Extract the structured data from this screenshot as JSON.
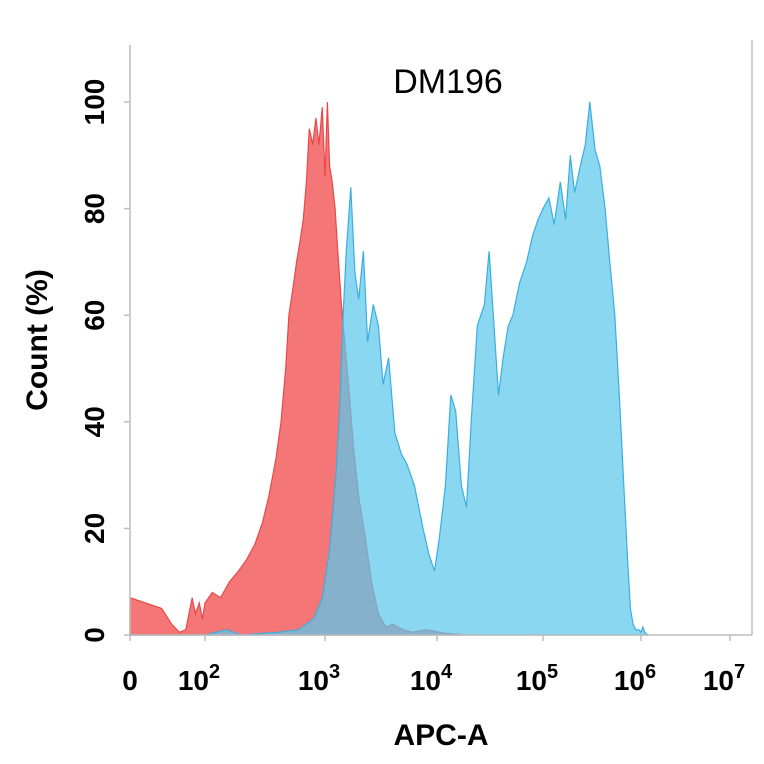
{
  "chart_data": {
    "type": "area",
    "title": "DM196",
    "xlabel": "APC-A",
    "ylabel": "Count  (%)",
    "x_scale": "biexponential",
    "xlim": [
      0,
      10000000
    ],
    "ylim": [
      0,
      100
    ],
    "x_ticks": [
      {
        "value": 0,
        "base": "0",
        "exp": ""
      },
      {
        "value": 100,
        "base": "10",
        "exp": "2"
      },
      {
        "value": 1000,
        "base": "10",
        "exp": "3"
      },
      {
        "value": 10000,
        "base": "10",
        "exp": "4"
      },
      {
        "value": 100000,
        "base": "10",
        "exp": "5"
      },
      {
        "value": 1000000,
        "base": "10",
        "exp": "6"
      },
      {
        "value": 10000000,
        "base": "10",
        "exp": "7"
      }
    ],
    "y_ticks": [
      0,
      20,
      40,
      60,
      80,
      100
    ],
    "grid": false,
    "series": [
      {
        "color": "#f36f6f",
        "line_color": "#e8484a",
        "points": [
          [
            0,
            7
          ],
          [
            6,
            5
          ],
          [
            12,
            2
          ],
          [
            20,
            0.5
          ],
          [
            30,
            1
          ],
          [
            45,
            7
          ],
          [
            55,
            4
          ],
          [
            70,
            6
          ],
          [
            85,
            3
          ],
          [
            100,
            6
          ],
          [
            115,
            8
          ],
          [
            135,
            7
          ],
          [
            160,
            10
          ],
          [
            190,
            12
          ],
          [
            220,
            14
          ],
          [
            260,
            17
          ],
          [
            300,
            21
          ],
          [
            340,
            26
          ],
          [
            390,
            33
          ],
          [
            430,
            40
          ],
          [
            470,
            50
          ],
          [
            500,
            60
          ],
          [
            540,
            65
          ],
          [
            580,
            70
          ],
          [
            620,
            74
          ],
          [
            660,
            78
          ],
          [
            700,
            85
          ],
          [
            740,
            95
          ],
          [
            790,
            92
          ],
          [
            840,
            97
          ],
          [
            890,
            92
          ],
          [
            950,
            99
          ],
          [
            1000,
            86
          ],
          [
            1050,
            100
          ],
          [
            1100,
            88
          ],
          [
            1160,
            85
          ],
          [
            1230,
            80
          ],
          [
            1300,
            72
          ],
          [
            1400,
            62
          ],
          [
            1500,
            55
          ],
          [
            1650,
            45
          ],
          [
            1800,
            35
          ],
          [
            2000,
            26
          ],
          [
            2300,
            18
          ],
          [
            2600,
            10
          ],
          [
            3000,
            4
          ],
          [
            3500,
            1.5
          ],
          [
            4000,
            2
          ],
          [
            5000,
            1
          ],
          [
            6000,
            0.5
          ],
          [
            8000,
            1
          ],
          [
            12000,
            0.3
          ],
          [
            20000,
            0
          ]
        ]
      },
      {
        "color": "#5cc8ec",
        "line_color": "#3aaee0",
        "points": [
          [
            0,
            0
          ],
          [
            100,
            0
          ],
          [
            150,
            1
          ],
          [
            200,
            0
          ],
          [
            400,
            0.5
          ],
          [
            600,
            1
          ],
          [
            800,
            3
          ],
          [
            950,
            7
          ],
          [
            1100,
            16
          ],
          [
            1250,
            30
          ],
          [
            1350,
            42
          ],
          [
            1450,
            60
          ],
          [
            1550,
            72
          ],
          [
            1700,
            84
          ],
          [
            1850,
            68
          ],
          [
            2000,
            63
          ],
          [
            2200,
            72
          ],
          [
            2400,
            55
          ],
          [
            2700,
            62
          ],
          [
            3000,
            58
          ],
          [
            3300,
            47
          ],
          [
            3700,
            52
          ],
          [
            4200,
            38
          ],
          [
            4800,
            34
          ],
          [
            5400,
            32
          ],
          [
            6300,
            28
          ],
          [
            7500,
            20
          ],
          [
            8500,
            15
          ],
          [
            9500,
            12
          ],
          [
            10500,
            18
          ],
          [
            12000,
            28
          ],
          [
            13500,
            45
          ],
          [
            15000,
            42
          ],
          [
            17000,
            28
          ],
          [
            19000,
            24
          ],
          [
            21000,
            40
          ],
          [
            24000,
            58
          ],
          [
            28000,
            62
          ],
          [
            31000,
            72
          ],
          [
            34000,
            60
          ],
          [
            38000,
            45
          ],
          [
            42000,
            52
          ],
          [
            47000,
            58
          ],
          [
            52000,
            60
          ],
          [
            60000,
            66
          ],
          [
            70000,
            70
          ],
          [
            80000,
            75
          ],
          [
            90000,
            78
          ],
          [
            100000,
            80
          ],
          [
            115000,
            82
          ],
          [
            130000,
            77
          ],
          [
            150000,
            85
          ],
          [
            170000,
            78
          ],
          [
            190000,
            90
          ],
          [
            210000,
            83
          ],
          [
            240000,
            88
          ],
          [
            270000,
            92
          ],
          [
            300000,
            100
          ],
          [
            340000,
            91
          ],
          [
            380000,
            88
          ],
          [
            430000,
            80
          ],
          [
            480000,
            70
          ],
          [
            540000,
            60
          ],
          [
            600000,
            45
          ],
          [
            660000,
            30
          ],
          [
            730000,
            14
          ],
          [
            780000,
            5
          ],
          [
            830000,
            2
          ],
          [
            880000,
            1
          ],
          [
            950000,
            1
          ],
          [
            1000000,
            0.5
          ],
          [
            1050000,
            1.5
          ],
          [
            1100000,
            0.5
          ],
          [
            1200000,
            0
          ]
        ]
      }
    ]
  }
}
